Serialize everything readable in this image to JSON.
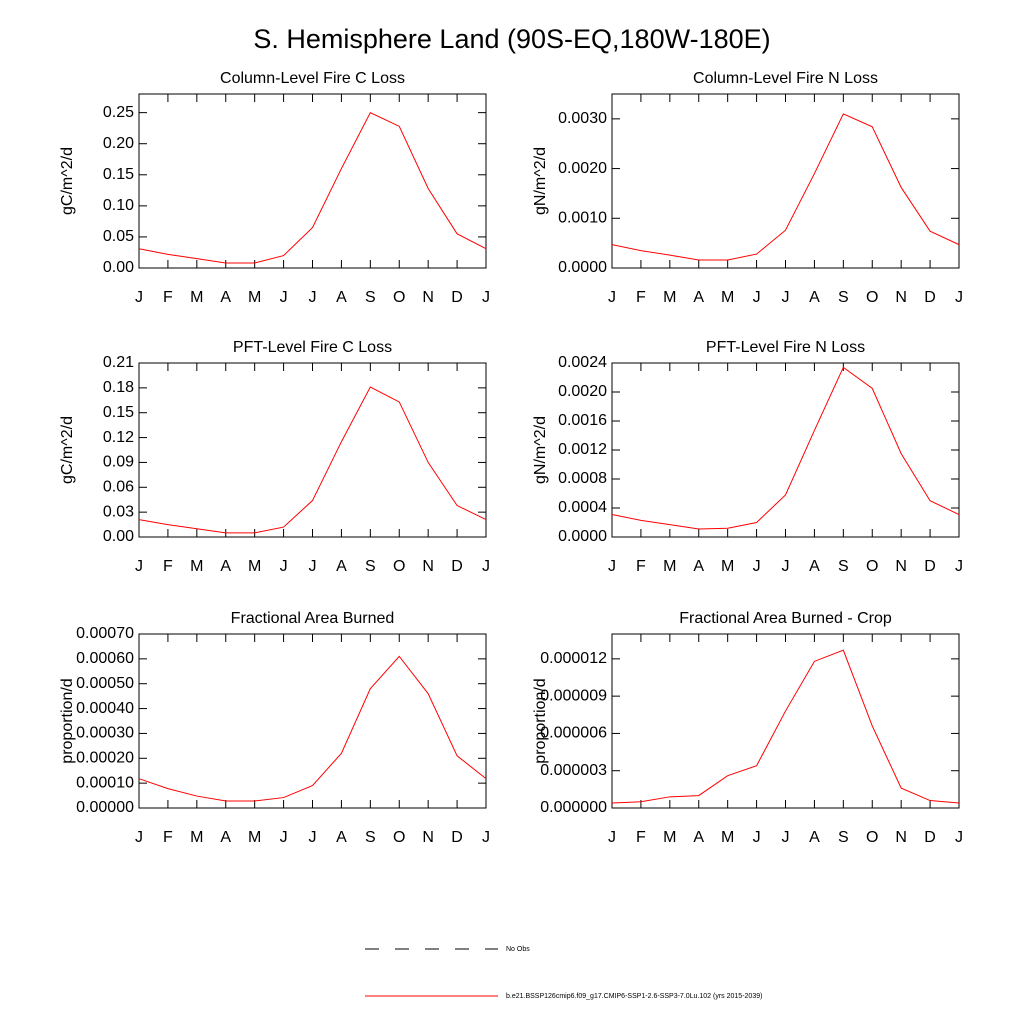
{
  "title": "S. Hemisphere Land (90S-EQ,180W-180E)",
  "legend": [
    {
      "name": "No Obs",
      "color": "#000000",
      "dash": "dashed"
    },
    {
      "name": "b.e21.BSSP126cmip6.f09_g17.CMIP6-SSP1-2.6-SSP3-7.0Lu.102 (yrs 2015-2039)",
      "color": "#ff0000",
      "dash": "solid"
    }
  ],
  "chart_data": [
    {
      "type": "line",
      "title": "Column-Level Fire C Loss",
      "y_label": "gC/m^2/d",
      "categories": [
        "J",
        "F",
        "M",
        "A",
        "M",
        "J",
        "J",
        "A",
        "S",
        "O",
        "N",
        "D",
        "J"
      ],
      "values": [
        0.031,
        0.022,
        0.015,
        0.008,
        0.008,
        0.02,
        0.065,
        0.16,
        0.25,
        0.228,
        0.128,
        0.055,
        0.031
      ],
      "color": "#ff0000",
      "ylim": [
        0,
        0.28
      ],
      "yticks": [
        {
          "value": 0,
          "label": "0.00"
        },
        {
          "value": 0.05,
          "label": "0.05"
        },
        {
          "value": 0.1,
          "label": "0.10"
        },
        {
          "value": 0.15,
          "label": "0.15"
        },
        {
          "value": 0.2,
          "label": "0.20"
        },
        {
          "value": 0.25,
          "label": "0.25"
        }
      ]
    },
    {
      "type": "line",
      "title": "Column-Level Fire N Loss",
      "y_label": "gN/m^2/d",
      "categories": [
        "J",
        "F",
        "M",
        "A",
        "M",
        "J",
        "J",
        "A",
        "S",
        "O",
        "N",
        "D",
        "J"
      ],
      "values": [
        0.00047,
        0.00035,
        0.00026,
        0.00016,
        0.00016,
        0.00028,
        0.00076,
        0.0019,
        0.0031,
        0.00284,
        0.00162,
        0.00074,
        0.00047
      ],
      "color": "#ff0000",
      "ylim": [
        0,
        0.0035
      ],
      "yticks": [
        {
          "value": 0,
          "label": "0.0000"
        },
        {
          "value": 0.001,
          "label": "0.0010"
        },
        {
          "value": 0.002,
          "label": "0.0020"
        },
        {
          "value": 0.003,
          "label": "0.0030"
        }
      ]
    },
    {
      "type": "line",
      "title": "PFT-Level Fire C Loss",
      "y_label": "gC/m^2/d",
      "categories": [
        "J",
        "F",
        "M",
        "A",
        "M",
        "J",
        "J",
        "A",
        "S",
        "O",
        "N",
        "D",
        "J"
      ],
      "values": [
        0.021,
        0.015,
        0.01,
        0.005,
        0.005,
        0.012,
        0.044,
        0.115,
        0.181,
        0.163,
        0.09,
        0.038,
        0.021
      ],
      "color": "#ff0000",
      "ylim": [
        0,
        0.21
      ],
      "yticks": [
        {
          "value": 0,
          "label": "0.00"
        },
        {
          "value": 0.03,
          "label": "0.03"
        },
        {
          "value": 0.06,
          "label": "0.06"
        },
        {
          "value": 0.09,
          "label": "0.09"
        },
        {
          "value": 0.12,
          "label": "0.12"
        },
        {
          "value": 0.15,
          "label": "0.15"
        },
        {
          "value": 0.18,
          "label": "0.18"
        },
        {
          "value": 0.21,
          "label": "0.21"
        }
      ]
    },
    {
      "type": "line",
      "title": "PFT-Level Fire N Loss",
      "y_label": "gN/m^2/d",
      "categories": [
        "J",
        "F",
        "M",
        "A",
        "M",
        "J",
        "J",
        "A",
        "S",
        "O",
        "N",
        "D",
        "J"
      ],
      "values": [
        0.00031,
        0.00023,
        0.00017,
        0.00011,
        0.00012,
        0.0002,
        0.00058,
        0.00147,
        0.00234,
        0.00205,
        0.00115,
        0.0005,
        0.00031
      ],
      "color": "#ff0000",
      "ylim": [
        0,
        0.0024
      ],
      "yticks": [
        {
          "value": 0,
          "label": "0.0000"
        },
        {
          "value": 0.0004,
          "label": "0.0004"
        },
        {
          "value": 0.0008,
          "label": "0.0008"
        },
        {
          "value": 0.0012,
          "label": "0.0012"
        },
        {
          "value": 0.0016,
          "label": "0.0016"
        },
        {
          "value": 0.002,
          "label": "0.0020"
        },
        {
          "value": 0.0024,
          "label": "0.0024"
        }
      ]
    },
    {
      "type": "line",
      "title": "Fractional Area Burned",
      "y_label": "proportion/d",
      "categories": [
        "J",
        "F",
        "M",
        "A",
        "M",
        "J",
        "J",
        "A",
        "S",
        "O",
        "N",
        "D",
        "J"
      ],
      "values": [
        0.000118,
        7.8e-05,
        4.8e-05,
        2.8e-05,
        2.8e-05,
        4.2e-05,
        9e-05,
        0.00022,
        0.00048,
        0.00061,
        0.00046,
        0.00021,
        0.000118
      ],
      "color": "#ff0000",
      "ylim": [
        0,
        0.0007
      ],
      "yticks": [
        {
          "value": 0,
          "label": "0.00000"
        },
        {
          "value": 0.0001,
          "label": "0.00010"
        },
        {
          "value": 0.0002,
          "label": "0.00020"
        },
        {
          "value": 0.0003,
          "label": "0.00030"
        },
        {
          "value": 0.0004,
          "label": "0.00040"
        },
        {
          "value": 0.0005,
          "label": "0.00050"
        },
        {
          "value": 0.0006,
          "label": "0.00060"
        },
        {
          "value": 0.0007,
          "label": "0.00070"
        }
      ]
    },
    {
      "type": "line",
      "title": "Fractional Area Burned - Crop",
      "y_label": "proportion/d",
      "categories": [
        "J",
        "F",
        "M",
        "A",
        "M",
        "J",
        "J",
        "A",
        "S",
        "O",
        "N",
        "D",
        "J"
      ],
      "values": [
        4e-07,
        5e-07,
        9e-07,
        1e-06,
        2.6e-06,
        3.4e-06,
        7.8e-06,
        1.18e-05,
        1.27e-05,
        6.6e-06,
        1.6e-06,
        6e-07,
        4e-07
      ],
      "color": "#ff0000",
      "ylim": [
        0,
        1.4e-05
      ],
      "yticks": [
        {
          "value": 0,
          "label": "0.000000"
        },
        {
          "value": 3e-06,
          "label": "0.000003"
        },
        {
          "value": 6e-06,
          "label": "0.000006"
        },
        {
          "value": 9e-06,
          "label": "0.000009"
        },
        {
          "value": 1.2e-05,
          "label": "0.000012"
        }
      ]
    }
  ]
}
